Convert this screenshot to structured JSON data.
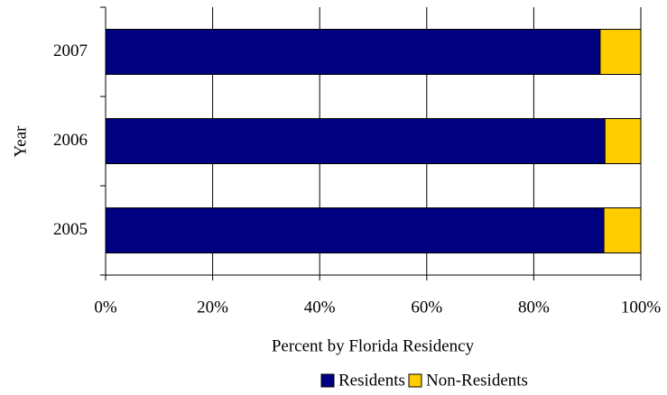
{
  "chart_data": {
    "type": "stacked_barh",
    "xlabel": "Percent by Florida Residency",
    "ylabel": "Year",
    "categories": [
      "2005",
      "2006",
      "2007"
    ],
    "series": [
      {
        "name": "Residents",
        "color": "#000080",
        "values": [
          93.1,
          93.3,
          92.4
        ]
      },
      {
        "name": "Non-Residents",
        "color": "#ffcc00",
        "values": [
          6.9,
          6.7,
          7.6
        ]
      }
    ],
    "xlim": [
      0,
      100
    ],
    "xticks": [
      {
        "value": 0,
        "label": "0%"
      },
      {
        "value": 20,
        "label": "20%"
      },
      {
        "value": 40,
        "label": "40%"
      },
      {
        "value": 60,
        "label": "60%"
      },
      {
        "value": 80,
        "label": "80%"
      },
      {
        "value": 100,
        "label": "100%"
      }
    ],
    "grid": true,
    "legend": "bottom"
  }
}
